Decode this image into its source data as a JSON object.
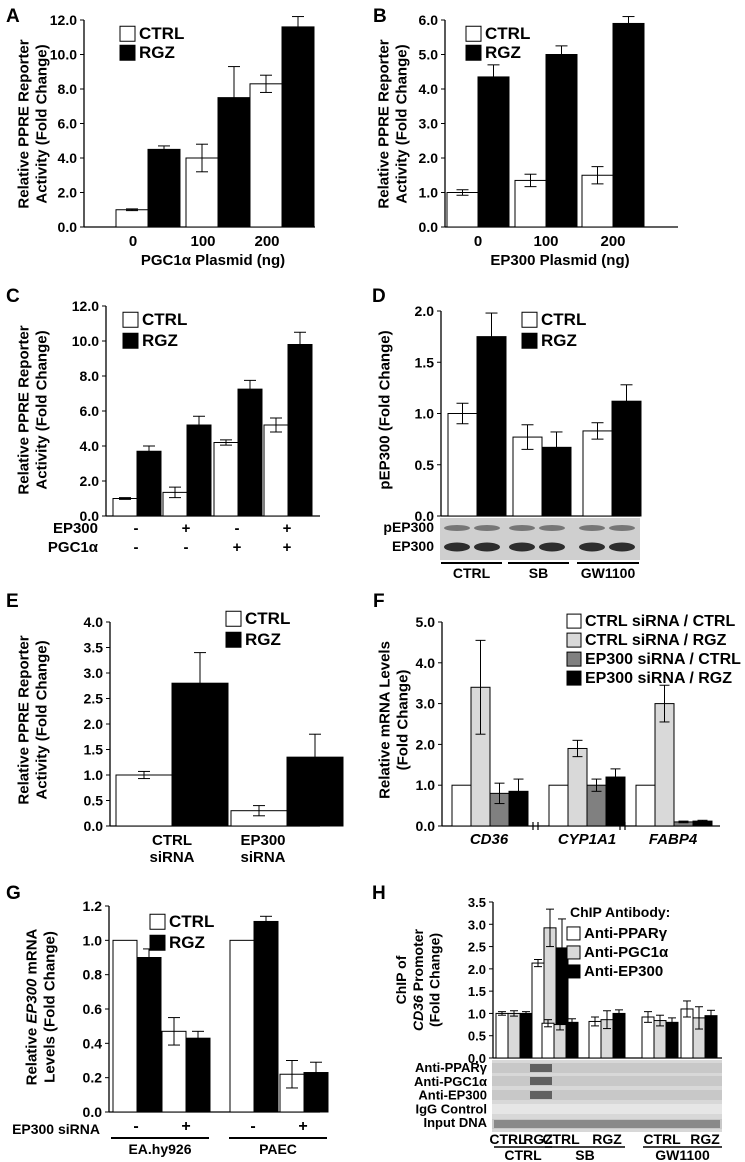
{
  "colors": {
    "ctrl": "#ffffff",
    "rgz": "#000000",
    "light_gray": "#d9d9d9",
    "dark_gray": "#808080",
    "stroke": "#000000"
  },
  "panels": [
    {
      "id": "A",
      "type": "bar",
      "ylabel": [
        "Relative PPRE Reporter",
        "Activity (Fold Change)"
      ],
      "xlabel": "PGC1α Plasmid (ng)",
      "ylim": [
        0,
        12
      ],
      "yticks": [
        "0.0",
        "2.0",
        "4.0",
        "6.0",
        "8.0",
        "10.0",
        "12.0"
      ],
      "categories": [
        "0",
        "100",
        "200"
      ],
      "legend": [
        "CTRL",
        "RGZ"
      ],
      "series": [
        {
          "name": "CTRL",
          "values": [
            1.0,
            4.0,
            8.3
          ],
          "errors": [
            0.05,
            0.8,
            0.5
          ]
        },
        {
          "name": "RGZ",
          "values": [
            4.5,
            7.5,
            11.6
          ],
          "errors": [
            0.2,
            1.8,
            0.6
          ]
        }
      ]
    },
    {
      "id": "B",
      "type": "bar",
      "ylabel": [
        "Relative PPRE Reporter",
        "Activity (Fold Change)"
      ],
      "xlabel": "EP300 Plasmid (ng)",
      "ylim": [
        0,
        6
      ],
      "yticks": [
        "0.0",
        "1.0",
        "2.0",
        "3.0",
        "4.0",
        "5.0",
        "6.0"
      ],
      "categories": [
        "0",
        "100",
        "200"
      ],
      "legend": [
        "CTRL",
        "RGZ"
      ],
      "series": [
        {
          "name": "CTRL",
          "values": [
            1.0,
            1.35,
            1.5
          ],
          "errors": [
            0.08,
            0.18,
            0.25
          ]
        },
        {
          "name": "RGZ",
          "values": [
            4.35,
            5.0,
            5.9
          ],
          "errors": [
            0.35,
            0.25,
            0.2
          ]
        }
      ]
    },
    {
      "id": "C",
      "type": "bar",
      "ylabel": [
        "Relative PPRE Reporter",
        "Activity (Fold Change)"
      ],
      "ylim": [
        0,
        12
      ],
      "yticks": [
        "0.0",
        "2.0",
        "4.0",
        "6.0",
        "8.0",
        "10.0",
        "12.0"
      ],
      "categories": [
        "",
        "",
        "",
        ""
      ],
      "legend": [
        "CTRL",
        "RGZ"
      ],
      "condition_rows": [
        {
          "label": "EP300",
          "values": [
            "-",
            "+",
            "-",
            "+"
          ]
        },
        {
          "label": "PGC1α",
          "values": [
            "-",
            "-",
            "+",
            "+"
          ]
        }
      ],
      "series": [
        {
          "name": "CTRL",
          "values": [
            1.0,
            1.35,
            4.2,
            5.2
          ],
          "errors": [
            0.05,
            0.3,
            0.15,
            0.4
          ]
        },
        {
          "name": "RGZ",
          "values": [
            3.7,
            5.2,
            7.25,
            9.8
          ],
          "errors": [
            0.3,
            0.5,
            0.5,
            0.7
          ]
        }
      ]
    },
    {
      "id": "D",
      "type": "bar",
      "ylabel": [
        "pEP300 (Fold Change)"
      ],
      "ylim": [
        0,
        2
      ],
      "yticks": [
        "0.0",
        "0.5",
        "1.0",
        "1.5",
        "2.0"
      ],
      "categories": [
        "CTRL",
        "SB",
        "GW1100"
      ],
      "legend": [
        "CTRL",
        "RGZ"
      ],
      "blot_labels": [
        "pEP300",
        "EP300"
      ],
      "series": [
        {
          "name": "CTRL",
          "values": [
            1.0,
            0.77,
            0.83
          ],
          "errors": [
            0.1,
            0.12,
            0.08
          ]
        },
        {
          "name": "RGZ",
          "values": [
            1.75,
            0.67,
            1.12
          ],
          "errors": [
            0.23,
            0.15,
            0.16
          ]
        }
      ]
    },
    {
      "id": "E",
      "type": "bar",
      "ylabel": [
        "Relative PPRE Reporter",
        "Activity (Fold Change)"
      ],
      "ylim": [
        0,
        4
      ],
      "yticks": [
        "0.0",
        "0.5",
        "1.0",
        "1.5",
        "2.0",
        "2.5",
        "3.0",
        "3.5",
        "4.0"
      ],
      "categories": [
        "CTRL\nsiRNA",
        "EP300\nsiRNA"
      ],
      "legend": [
        "CTRL",
        "RGZ"
      ],
      "series": [
        {
          "name": "CTRL",
          "values": [
            1.0,
            0.3
          ],
          "errors": [
            0.07,
            0.1
          ]
        },
        {
          "name": "RGZ",
          "values": [
            2.8,
            1.35
          ],
          "errors": [
            0.6,
            0.45
          ]
        }
      ]
    },
    {
      "id": "F",
      "type": "bar",
      "ylabel": [
        "Relative mRNA Levels",
        "(Fold Change)"
      ],
      "ylim": [
        0,
        5
      ],
      "yticks": [
        "0.0",
        "1.0",
        "2.0",
        "3.0",
        "4.0",
        "5.0"
      ],
      "categories": [
        "CD36",
        "CYP1A1",
        "FABP4"
      ],
      "legend": [
        "CTRL siRNA / CTRL",
        "CTRL siRNA / RGZ",
        "EP300 siRNA / CTRL",
        "EP300 siRNA / RGZ"
      ],
      "series": [
        {
          "name": "CTRL siRNA / CTRL",
          "values": [
            1.0,
            1.0,
            1.0
          ],
          "errors": [
            0,
            0,
            0
          ]
        },
        {
          "name": "CTRL siRNA / RGZ",
          "values": [
            3.4,
            1.9,
            3.0
          ],
          "errors": [
            1.15,
            0.2,
            0.45
          ]
        },
        {
          "name": "EP300 siRNA / CTRL",
          "values": [
            0.8,
            1.0,
            0.1
          ],
          "errors": [
            0.25,
            0.15,
            0.02
          ]
        },
        {
          "name": "EP300 siRNA / RGZ",
          "values": [
            0.85,
            1.2,
            0.12
          ],
          "errors": [
            0.3,
            0.2,
            0.02
          ]
        }
      ]
    },
    {
      "id": "G",
      "type": "bar",
      "ylabel": [
        "Relative EP300 mRNA",
        "Levels (Fold Change)"
      ],
      "ylim": [
        0,
        1.2
      ],
      "yticks": [
        "0.0",
        "0.2",
        "0.4",
        "0.6",
        "0.8",
        "1.0",
        "1.2"
      ],
      "categories": [
        "EA.hy926",
        "PAEC"
      ],
      "legend": [
        "CTRL",
        "RGZ"
      ],
      "condition_rows": [
        {
          "label": "EP300 siRNA",
          "values": [
            "-",
            "+",
            "-",
            "+"
          ]
        }
      ],
      "series": [
        {
          "name": "CTRL",
          "values": [
            1.0,
            0.47,
            1.0,
            0.22
          ],
          "errors": [
            0,
            0.08,
            0,
            0.08
          ]
        },
        {
          "name": "RGZ",
          "values": [
            0.9,
            0.43,
            1.11,
            0.23
          ],
          "errors": [
            0.05,
            0.04,
            0.03,
            0.06
          ]
        }
      ]
    },
    {
      "id": "H",
      "type": "bar",
      "ylabel": [
        "ChIP of",
        "CD36 Promoter",
        "(Fold Change)"
      ],
      "ylim": [
        0,
        3.5
      ],
      "yticks": [
        "0.0",
        "0.5",
        "1.0",
        "1.5",
        "2.0",
        "2.5",
        "3.0",
        "3.5"
      ],
      "categories": [
        "CTRL",
        "RGZ",
        "CTRL",
        "RGZ",
        "CTRL",
        "RGZ"
      ],
      "groups": [
        "CTRL",
        "SB",
        "GW1100"
      ],
      "legend_title": "ChIP Antibody:",
      "legend": [
        "Anti-PPARγ",
        "Anti-PGC1α",
        "Anti-EP300"
      ],
      "blot_labels": [
        "Anti-PPARγ",
        "Anti-PGC1α",
        "Anti-EP300",
        "IgG Control",
        "Input DNA"
      ],
      "series": [
        {
          "name": "Anti-PPARγ",
          "values": [
            1.0,
            2.13,
            0.78,
            0.82,
            0.92,
            1.1
          ],
          "errors": [
            0.04,
            0.08,
            0.08,
            0.1,
            0.12,
            0.18
          ]
        },
        {
          "name": "Anti-PGC1α",
          "values": [
            1.0,
            2.92,
            0.75,
            0.86,
            0.84,
            0.9
          ],
          "errors": [
            0.06,
            0.42,
            0.12,
            0.2,
            0.12,
            0.25
          ]
        },
        {
          "name": "Anti-EP300",
          "values": [
            1.0,
            2.47,
            0.8,
            1.0,
            0.8,
            0.95
          ],
          "errors": [
            0.04,
            0.65,
            0.08,
            0.08,
            0.1,
            0.12
          ]
        }
      ]
    }
  ]
}
